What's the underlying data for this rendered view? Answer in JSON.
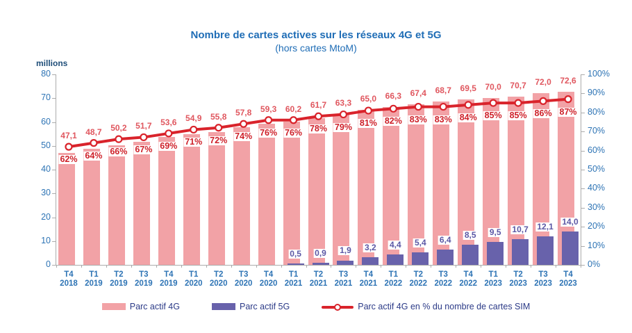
{
  "title": "Nombre de cartes actives sur les réseaux 4G et 5G",
  "subtitle": "(hors cartes MtoM)",
  "axis_left_title": "millions",
  "colors": {
    "bar_4g": "#F2A2A6",
    "bar_5g": "#6862AB",
    "line": "#D9232B",
    "value_label": "#E0575F",
    "pct_label": "#CE1F28",
    "label_5g": "#5B57A5",
    "axis_text": "#2E74B5",
    "title_text": "#1F6DB6",
    "legend_text": "#2B3A87",
    "axis_line": "#ABABAB"
  },
  "chart_data": {
    "type": "bar",
    "title": "Nombre de cartes actives sur les réseaux 4G et 5G (hors cartes MtoM)",
    "ylabel_left": "millions",
    "categories": [
      "T4 2018",
      "T1 2019",
      "T2 2019",
      "T3 2019",
      "T4 2019",
      "T1 2020",
      "T2 2020",
      "T3 2020",
      "T4 2020",
      "T1 2021",
      "T2 2021",
      "T3 2021",
      "T4 2021",
      "T1 2022",
      "T2 2022",
      "T3 2022",
      "T4 2022",
      "T1 2023",
      "T2 2023",
      "T3 2023",
      "T4 2023"
    ],
    "series": [
      {
        "name": "Parc actif 4G",
        "type": "bar",
        "axis": "left",
        "values": [
          47.1,
          48.7,
          50.2,
          51.7,
          53.6,
          54.9,
          55.8,
          57.8,
          59.3,
          60.2,
          61.7,
          63.3,
          65.0,
          66.3,
          67.4,
          68.7,
          69.5,
          70.0,
          70.7,
          72.0,
          72.6
        ]
      },
      {
        "name": "Parc actif 5G",
        "type": "bar",
        "axis": "left",
        "values": [
          null,
          null,
          null,
          null,
          null,
          null,
          null,
          null,
          null,
          0.5,
          0.9,
          1.9,
          3.2,
          4.4,
          5.4,
          6.4,
          8.5,
          9.5,
          10.7,
          12.1,
          14.0
        ]
      },
      {
        "name": "Parc actif 4G en % du nombre de cartes SIM",
        "type": "line",
        "axis": "right",
        "values": [
          62,
          64,
          66,
          67,
          69,
          71,
          72,
          74,
          76,
          76,
          78,
          79,
          81,
          82,
          83,
          83,
          84,
          85,
          85,
          86,
          87
        ]
      }
    ],
    "ylim_left": [
      0,
      80
    ],
    "ylim_right": [
      0,
      100
    ],
    "left_ticks": [
      0,
      10,
      20,
      30,
      40,
      50,
      60,
      70,
      80
    ],
    "right_ticks": [
      0,
      10,
      20,
      30,
      40,
      50,
      60,
      70,
      80,
      90,
      100
    ],
    "grid": false,
    "legend_position": "bottom"
  }
}
